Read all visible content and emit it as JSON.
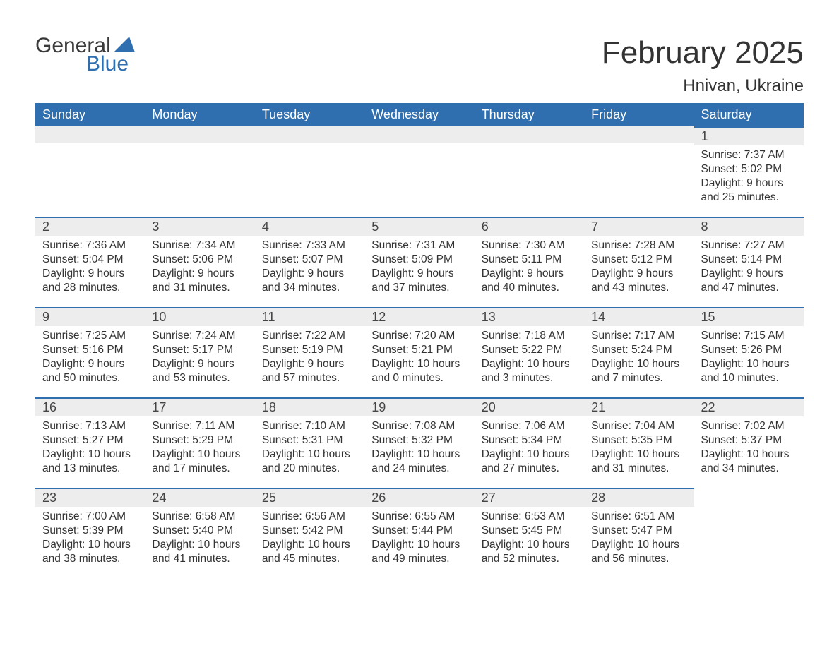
{
  "logo": {
    "word1": "General",
    "word2": "Blue"
  },
  "title": "February 2025",
  "location": "Hnivan, Ukraine",
  "colors": {
    "header_bg": "#2f6faf",
    "header_text": "#ffffff",
    "daynum_bg": "#ededed",
    "border_top": "#2f6faf",
    "body_text": "#333333",
    "logo_blue": "#2f6faf",
    "logo_dark": "#3a3a3a",
    "page_bg": "#ffffff"
  },
  "typography": {
    "title_fontsize": 44,
    "location_fontsize": 24,
    "dayheader_fontsize": 18,
    "daynum_fontsize": 18,
    "details_fontsize": 15.5,
    "logo_fontsize": 30
  },
  "day_headers": [
    "Sunday",
    "Monday",
    "Tuesday",
    "Wednesday",
    "Thursday",
    "Friday",
    "Saturday"
  ],
  "weeks": [
    [
      null,
      null,
      null,
      null,
      null,
      null,
      {
        "n": "1",
        "sunrise": "Sunrise: 7:37 AM",
        "sunset": "Sunset: 5:02 PM",
        "daylight1": "Daylight: 9 hours",
        "daylight2": "and 25 minutes."
      }
    ],
    [
      {
        "n": "2",
        "sunrise": "Sunrise: 7:36 AM",
        "sunset": "Sunset: 5:04 PM",
        "daylight1": "Daylight: 9 hours",
        "daylight2": "and 28 minutes."
      },
      {
        "n": "3",
        "sunrise": "Sunrise: 7:34 AM",
        "sunset": "Sunset: 5:06 PM",
        "daylight1": "Daylight: 9 hours",
        "daylight2": "and 31 minutes."
      },
      {
        "n": "4",
        "sunrise": "Sunrise: 7:33 AM",
        "sunset": "Sunset: 5:07 PM",
        "daylight1": "Daylight: 9 hours",
        "daylight2": "and 34 minutes."
      },
      {
        "n": "5",
        "sunrise": "Sunrise: 7:31 AM",
        "sunset": "Sunset: 5:09 PM",
        "daylight1": "Daylight: 9 hours",
        "daylight2": "and 37 minutes."
      },
      {
        "n": "6",
        "sunrise": "Sunrise: 7:30 AM",
        "sunset": "Sunset: 5:11 PM",
        "daylight1": "Daylight: 9 hours",
        "daylight2": "and 40 minutes."
      },
      {
        "n": "7",
        "sunrise": "Sunrise: 7:28 AM",
        "sunset": "Sunset: 5:12 PM",
        "daylight1": "Daylight: 9 hours",
        "daylight2": "and 43 minutes."
      },
      {
        "n": "8",
        "sunrise": "Sunrise: 7:27 AM",
        "sunset": "Sunset: 5:14 PM",
        "daylight1": "Daylight: 9 hours",
        "daylight2": "and 47 minutes."
      }
    ],
    [
      {
        "n": "9",
        "sunrise": "Sunrise: 7:25 AM",
        "sunset": "Sunset: 5:16 PM",
        "daylight1": "Daylight: 9 hours",
        "daylight2": "and 50 minutes."
      },
      {
        "n": "10",
        "sunrise": "Sunrise: 7:24 AM",
        "sunset": "Sunset: 5:17 PM",
        "daylight1": "Daylight: 9 hours",
        "daylight2": "and 53 minutes."
      },
      {
        "n": "11",
        "sunrise": "Sunrise: 7:22 AM",
        "sunset": "Sunset: 5:19 PM",
        "daylight1": "Daylight: 9 hours",
        "daylight2": "and 57 minutes."
      },
      {
        "n": "12",
        "sunrise": "Sunrise: 7:20 AM",
        "sunset": "Sunset: 5:21 PM",
        "daylight1": "Daylight: 10 hours",
        "daylight2": "and 0 minutes."
      },
      {
        "n": "13",
        "sunrise": "Sunrise: 7:18 AM",
        "sunset": "Sunset: 5:22 PM",
        "daylight1": "Daylight: 10 hours",
        "daylight2": "and 3 minutes."
      },
      {
        "n": "14",
        "sunrise": "Sunrise: 7:17 AM",
        "sunset": "Sunset: 5:24 PM",
        "daylight1": "Daylight: 10 hours",
        "daylight2": "and 7 minutes."
      },
      {
        "n": "15",
        "sunrise": "Sunrise: 7:15 AM",
        "sunset": "Sunset: 5:26 PM",
        "daylight1": "Daylight: 10 hours",
        "daylight2": "and 10 minutes."
      }
    ],
    [
      {
        "n": "16",
        "sunrise": "Sunrise: 7:13 AM",
        "sunset": "Sunset: 5:27 PM",
        "daylight1": "Daylight: 10 hours",
        "daylight2": "and 13 minutes."
      },
      {
        "n": "17",
        "sunrise": "Sunrise: 7:11 AM",
        "sunset": "Sunset: 5:29 PM",
        "daylight1": "Daylight: 10 hours",
        "daylight2": "and 17 minutes."
      },
      {
        "n": "18",
        "sunrise": "Sunrise: 7:10 AM",
        "sunset": "Sunset: 5:31 PM",
        "daylight1": "Daylight: 10 hours",
        "daylight2": "and 20 minutes."
      },
      {
        "n": "19",
        "sunrise": "Sunrise: 7:08 AM",
        "sunset": "Sunset: 5:32 PM",
        "daylight1": "Daylight: 10 hours",
        "daylight2": "and 24 minutes."
      },
      {
        "n": "20",
        "sunrise": "Sunrise: 7:06 AM",
        "sunset": "Sunset: 5:34 PM",
        "daylight1": "Daylight: 10 hours",
        "daylight2": "and 27 minutes."
      },
      {
        "n": "21",
        "sunrise": "Sunrise: 7:04 AM",
        "sunset": "Sunset: 5:35 PM",
        "daylight1": "Daylight: 10 hours",
        "daylight2": "and 31 minutes."
      },
      {
        "n": "22",
        "sunrise": "Sunrise: 7:02 AM",
        "sunset": "Sunset: 5:37 PM",
        "daylight1": "Daylight: 10 hours",
        "daylight2": "and 34 minutes."
      }
    ],
    [
      {
        "n": "23",
        "sunrise": "Sunrise: 7:00 AM",
        "sunset": "Sunset: 5:39 PM",
        "daylight1": "Daylight: 10 hours",
        "daylight2": "and 38 minutes."
      },
      {
        "n": "24",
        "sunrise": "Sunrise: 6:58 AM",
        "sunset": "Sunset: 5:40 PM",
        "daylight1": "Daylight: 10 hours",
        "daylight2": "and 41 minutes."
      },
      {
        "n": "25",
        "sunrise": "Sunrise: 6:56 AM",
        "sunset": "Sunset: 5:42 PM",
        "daylight1": "Daylight: 10 hours",
        "daylight2": "and 45 minutes."
      },
      {
        "n": "26",
        "sunrise": "Sunrise: 6:55 AM",
        "sunset": "Sunset: 5:44 PM",
        "daylight1": "Daylight: 10 hours",
        "daylight2": "and 49 minutes."
      },
      {
        "n": "27",
        "sunrise": "Sunrise: 6:53 AM",
        "sunset": "Sunset: 5:45 PM",
        "daylight1": "Daylight: 10 hours",
        "daylight2": "and 52 minutes."
      },
      {
        "n": "28",
        "sunrise": "Sunrise: 6:51 AM",
        "sunset": "Sunset: 5:47 PM",
        "daylight1": "Daylight: 10 hours",
        "daylight2": "and 56 minutes."
      },
      null
    ]
  ]
}
